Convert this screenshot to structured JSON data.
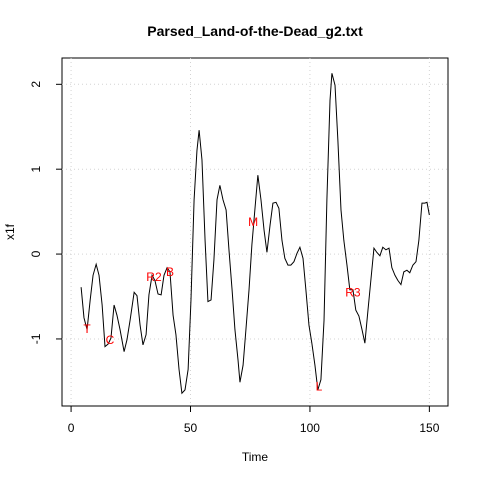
{
  "chart_data": {
    "type": "line",
    "title": "Parsed_Land-of-the-Dead_g2.txt",
    "xlabel": "Time",
    "ylabel": "x1f",
    "x": [
      4.2,
      5.4,
      6.7,
      8,
      9.2,
      10.5,
      11.7,
      13,
      14.2,
      15.5,
      16.7,
      18,
      19.2,
      20.5,
      22.2,
      23.4,
      24.7,
      26.4,
      27.6,
      28.9,
      30.1,
      31.4,
      32.6,
      33.9,
      35.1,
      36.4,
      37.7,
      38.9,
      40.2,
      41.4,
      42.7,
      43.9,
      45.2,
      46.4,
      47.7,
      49,
      50.2,
      51.5,
      52.7,
      53.6,
      54.8,
      56.1,
      57.3,
      58.6,
      59.8,
      61.1,
      62.3,
      63.6,
      64.9,
      66.1,
      67.4,
      68.6,
      69.9,
      70.7,
      72,
      73.2,
      74.5,
      75.7,
      77,
      78.2,
      79.5,
      80.8,
      82,
      83.3,
      84.5,
      85.8,
      87,
      88.3,
      89.5,
      90.8,
      92,
      93.3,
      94.6,
      95.8,
      97.1,
      98.3,
      99.6,
      100.8,
      102.1,
      103.3,
      104.6,
      105.9,
      107.1,
      108.4,
      109.2,
      110.5,
      111.7,
      113,
      114.2,
      115.5,
      116.7,
      118,
      119.2,
      120.5,
      121.8,
      123,
      124.3,
      125.5,
      126.8,
      128,
      129.3,
      130.5,
      131.8,
      133.1,
      134.3,
      135.6,
      136.8,
      138.1,
      139.3,
      140.6,
      141.8,
      143.1,
      144.4,
      145.6,
      146.9,
      148.1,
      149,
      150
    ],
    "values": [
      -0.39,
      -0.75,
      -0.89,
      -0.54,
      -0.25,
      -0.12,
      -0.25,
      -0.6,
      -1.09,
      -1.06,
      -0.99,
      -0.6,
      -0.72,
      -0.89,
      -1.15,
      -1.01,
      -0.78,
      -0.45,
      -0.49,
      -0.84,
      -1.07,
      -0.95,
      -0.48,
      -0.25,
      -0.31,
      -0.47,
      -0.48,
      -0.25,
      -0.16,
      -0.21,
      -0.72,
      -0.95,
      -1.36,
      -1.64,
      -1.6,
      -1.36,
      -0.54,
      0.64,
      1.22,
      1.46,
      1.11,
      0.16,
      -0.56,
      -0.54,
      -0.07,
      0.64,
      0.81,
      0.64,
      0.52,
      0.05,
      -0.42,
      -0.89,
      -1.25,
      -1.51,
      -1.31,
      -0.89,
      -0.42,
      0.11,
      0.54,
      0.93,
      0.64,
      0.28,
      0.02,
      0.34,
      0.6,
      0.61,
      0.54,
      0.16,
      -0.05,
      -0.13,
      -0.13,
      -0.09,
      0.01,
      0.08,
      -0.05,
      -0.42,
      -0.84,
      -1.05,
      -1.31,
      -1.6,
      -1.48,
      -0.78,
      0.64,
      1.81,
      2.13,
      1.99,
      1.34,
      0.52,
      0.16,
      -0.13,
      -0.42,
      -0.42,
      -0.66,
      -0.73,
      -0.89,
      -1.05,
      -0.66,
      -0.31,
      0.07,
      0.02,
      -0.02,
      0.08,
      0.05,
      0.07,
      -0.16,
      -0.25,
      -0.31,
      -0.36,
      -0.21,
      -0.19,
      -0.22,
      -0.13,
      -0.09,
      0.16,
      0.6,
      0.6,
      0.61,
      0.46
    ],
    "color": "#000000",
    "annotations": [
      {
        "text": "T",
        "x": 6.7,
        "y": -0.88,
        "color": "#ff0000"
      },
      {
        "text": "C",
        "x": 16.3,
        "y": -1.01,
        "color": "#ff0000"
      },
      {
        "text": "R2",
        "x": 34.7,
        "y": -0.27,
        "color": "#ff0000"
      },
      {
        "text": "B",
        "x": 41.4,
        "y": -0.21,
        "color": "#ff0000"
      },
      {
        "text": "M",
        "x": 76.2,
        "y": 0.38,
        "color": "#ff0000"
      },
      {
        "text": "L",
        "x": 103.8,
        "y": -1.56,
        "color": "#ff0000"
      },
      {
        "text": "R3",
        "x": 118,
        "y": -0.45,
        "color": "#ff0000"
      }
    ],
    "xlim": [
      -3.8,
      157.8
    ],
    "ylim": [
      -1.79,
      2.31
    ],
    "xticks": [
      0,
      50,
      100,
      150
    ],
    "yticks": [
      -1,
      0,
      1,
      2
    ],
    "grid": true
  }
}
